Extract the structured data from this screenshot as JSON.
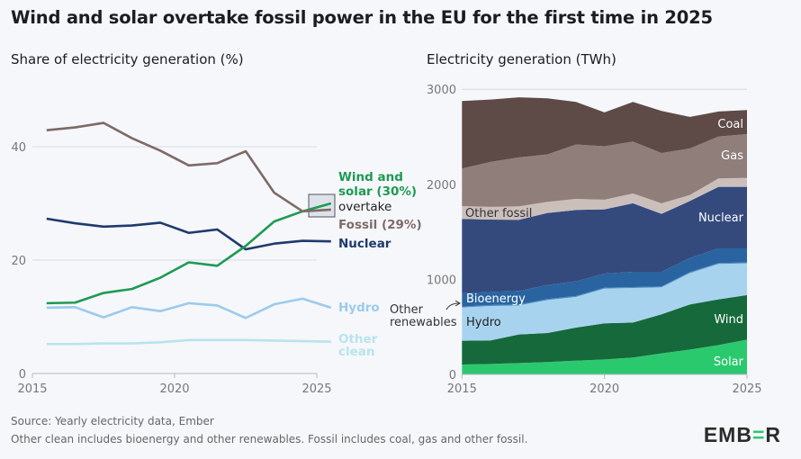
{
  "title": "Wind and solar overtake fossil power in the EU for the first time in 2025",
  "footer": {
    "source": "Source: Yearly electricity data, Ember",
    "note": "Other clean includes bioenergy and other renewables. Fossil includes coal, gas and other fossil.",
    "logo": "EMBER"
  },
  "chart_data": [
    {
      "type": "line",
      "title": "Share of electricity generation (%)",
      "x": [
        2015,
        2016,
        2017,
        2018,
        2019,
        2020,
        2021,
        2022,
        2023,
        2024,
        2025
      ],
      "xticks": [
        "2015",
        "2020",
        "2025"
      ],
      "yticks": [
        "0",
        "20",
        "40"
      ],
      "ylim": [
        0,
        50
      ],
      "grid": true,
      "annotation": "overtake",
      "series": [
        {
          "name": "Fossil (29%)",
          "color": "#7d6a66",
          "values": [
            42.9,
            43.4,
            44.2,
            41.5,
            39.3,
            36.7,
            37.1,
            39.2,
            31.9,
            28.6,
            28.9
          ]
        },
        {
          "name": "Wind and solar (30%)",
          "name_lines": [
            "Wind and",
            "solar (30%)"
          ],
          "color": "#1e9a52",
          "values": [
            12.4,
            12.5,
            14.2,
            14.9,
            16.9,
            19.6,
            19.0,
            22.5,
            26.8,
            28.6,
            30.0
          ]
        },
        {
          "name": "Nuclear",
          "color": "#1f3a6e",
          "values": [
            27.3,
            26.5,
            25.9,
            26.1,
            26.6,
            24.8,
            25.4,
            21.9,
            22.9,
            23.4,
            23.3
          ]
        },
        {
          "name": "Hydro",
          "color": "#9ccaec",
          "values": [
            11.6,
            11.7,
            9.9,
            11.7,
            11.0,
            12.4,
            12.0,
            9.8,
            12.2,
            13.2,
            11.6
          ]
        },
        {
          "name": "Other clean",
          "name_lines": [
            "Other",
            "clean"
          ],
          "color": "#b8e4ec",
          "values": [
            5.2,
            5.2,
            5.3,
            5.3,
            5.5,
            5.9,
            5.9,
            5.9,
            5.8,
            5.7,
            5.6
          ]
        }
      ]
    },
    {
      "type": "area",
      "stacked": true,
      "title": "Electricity generation (TWh)",
      "x": [
        2015,
        2016,
        2017,
        2018,
        2019,
        2020,
        2021,
        2022,
        2023,
        2024,
        2025
      ],
      "xticks": [
        "2015",
        "2020",
        "2025"
      ],
      "yticks": [
        "0",
        "1000",
        "2000",
        "3000"
      ],
      "ylim": [
        0,
        3000
      ],
      "series": [
        {
          "name": "Solar",
          "color": "#2bc96e",
          "values": [
            104,
            110,
            120,
            130,
            145,
            158,
            177,
            221,
            262,
            309,
            366
          ]
        },
        {
          "name": "Wind",
          "color": "#16693b",
          "values": [
            250,
            247,
            300,
            306,
            348,
            379,
            369,
            411,
            474,
            480,
            468
          ]
        },
        {
          "name": "Hydro",
          "color": "#a8d3ee",
          "values": [
            350,
            363,
            306,
            347,
            322,
            366,
            363,
            284,
            331,
            373,
            334
          ]
        },
        {
          "name": "Other renewables",
          "color": "#4d8fc6",
          "values": [
            10,
            10,
            10,
            10,
            10,
            10,
            10,
            10,
            10,
            10,
            10
          ]
        },
        {
          "name": "Bioenergy",
          "color": "#2a64a0",
          "values": [
            139,
            138,
            142,
            148,
            154,
            148,
            161,
            154,
            148,
            154,
            148
          ]
        },
        {
          "name": "Nuclear",
          "color": "#344a7d",
          "values": [
            783,
            761,
            748,
            758,
            751,
            676,
            720,
            609,
            600,
            647,
            647
          ]
        },
        {
          "name": "Other fossil",
          "color": "#cbbfbc",
          "values": [
            135,
            133,
            142,
            117,
            117,
            101,
            104,
            111,
            63,
            89,
            95
          ]
        },
        {
          "name": "Gas",
          "color": "#8f7e7a",
          "values": [
            395,
            474,
            515,
            499,
            572,
            562,
            546,
            530,
            490,
            442,
            461
          ]
        },
        {
          "name": "Coal",
          "color": "#5e4a46",
          "values": [
            711,
            656,
            632,
            590,
            448,
            357,
            417,
            442,
            331,
            262,
            253
          ]
        }
      ]
    }
  ]
}
